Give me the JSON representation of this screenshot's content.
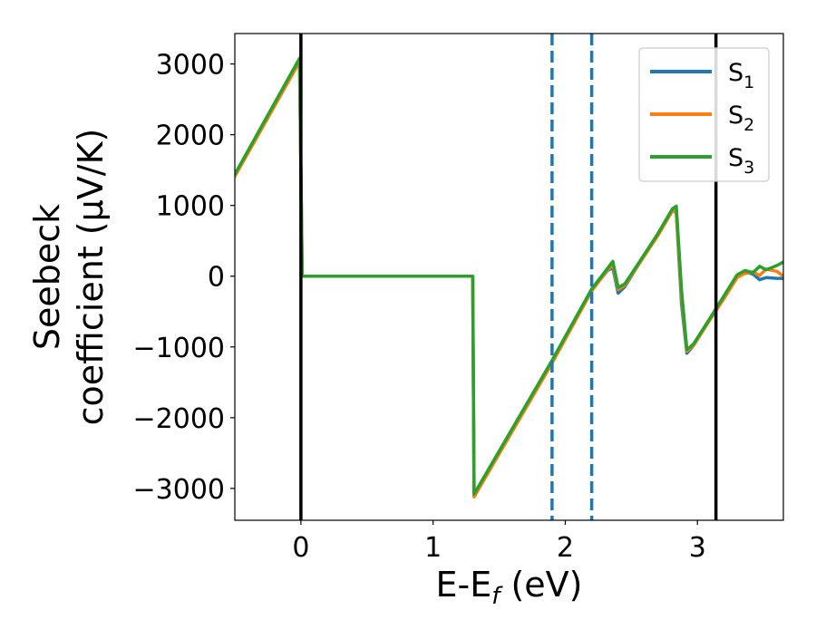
{
  "chart_data": {
    "type": "line",
    "title": "",
    "xlabel_parts": [
      "E-E",
      "f",
      " (eV)"
    ],
    "ylabel_lines": [
      "Seebeck",
      "coefficient  (μV/K)"
    ],
    "xlim": [
      -0.5,
      3.65
    ],
    "ylim": [
      -3450,
      3430
    ],
    "x_ticks": [
      0,
      1,
      2,
      3
    ],
    "x_tick_labels": [
      "0",
      "1",
      "2",
      "3"
    ],
    "y_ticks": [
      3000,
      2000,
      1000,
      0,
      -1000,
      -2000,
      -3000
    ],
    "y_tick_labels": [
      "3000",
      "2000",
      "1000",
      "0",
      "−1000",
      "−2000",
      "−3000"
    ],
    "grid": false,
    "legend_position": "top-right",
    "vertical_lines": [
      {
        "x": 0.0,
        "style": "solid",
        "color": "#000000"
      },
      {
        "x": 1.9,
        "style": "dashed",
        "color": "#1f77b4"
      },
      {
        "x": 2.2,
        "style": "dashed",
        "color": "#1f77b4"
      },
      {
        "x": 3.14,
        "style": "solid",
        "color": "#000000"
      }
    ],
    "series": [
      {
        "name": "S",
        "subscript": "1",
        "color": "#1f77b4",
        "points": [
          [
            -0.5,
            1430
          ],
          [
            -0.01,
            3050
          ],
          [
            0.01,
            0
          ],
          [
            1.3,
            0
          ],
          [
            1.31,
            -3100
          ],
          [
            1.9,
            -1210
          ],
          [
            2.2,
            -200
          ],
          [
            2.32,
            80
          ],
          [
            2.36,
            120
          ],
          [
            2.4,
            -240
          ],
          [
            2.45,
            -150
          ],
          [
            2.55,
            150
          ],
          [
            2.7,
            580
          ],
          [
            2.81,
            930
          ],
          [
            2.84,
            900
          ],
          [
            2.88,
            -400
          ],
          [
            2.92,
            -1090
          ],
          [
            2.97,
            -980
          ],
          [
            3.1,
            -600
          ],
          [
            3.2,
            -300
          ],
          [
            3.3,
            0
          ],
          [
            3.36,
            60
          ],
          [
            3.42,
            30
          ],
          [
            3.47,
            -50
          ],
          [
            3.52,
            -20
          ],
          [
            3.6,
            -30
          ],
          [
            3.65,
            -30
          ]
        ]
      },
      {
        "name": "S",
        "subscript": "2",
        "color": "#ff7f0e",
        "points": [
          [
            -0.5,
            1410
          ],
          [
            -0.01,
            3030
          ],
          [
            0.01,
            0
          ],
          [
            1.3,
            0
          ],
          [
            1.31,
            -3120
          ],
          [
            1.9,
            -1230
          ],
          [
            2.2,
            -210
          ],
          [
            2.32,
            90
          ],
          [
            2.36,
            160
          ],
          [
            2.4,
            -190
          ],
          [
            2.45,
            -130
          ],
          [
            2.55,
            150
          ],
          [
            2.7,
            570
          ],
          [
            2.81,
            920
          ],
          [
            2.84,
            900
          ],
          [
            2.88,
            -300
          ],
          [
            2.92,
            -1060
          ],
          [
            2.97,
            -980
          ],
          [
            3.1,
            -600
          ],
          [
            3.2,
            -320
          ],
          [
            3.3,
            -20
          ],
          [
            3.36,
            40
          ],
          [
            3.42,
            60
          ],
          [
            3.47,
            10
          ],
          [
            3.52,
            100
          ],
          [
            3.6,
            70
          ],
          [
            3.65,
            0
          ]
        ]
      },
      {
        "name": "S",
        "subscript": "3",
        "color": "#2ca02c",
        "points": [
          [
            -0.5,
            1440
          ],
          [
            -0.01,
            3080
          ],
          [
            0.01,
            0
          ],
          [
            1.3,
            0
          ],
          [
            1.31,
            -3080
          ],
          [
            1.9,
            -1190
          ],
          [
            2.2,
            -180
          ],
          [
            2.32,
            110
          ],
          [
            2.36,
            210
          ],
          [
            2.4,
            -160
          ],
          [
            2.45,
            -110
          ],
          [
            2.55,
            170
          ],
          [
            2.7,
            600
          ],
          [
            2.81,
            950
          ],
          [
            2.84,
            990
          ],
          [
            2.88,
            -200
          ],
          [
            2.92,
            -1040
          ],
          [
            2.97,
            -960
          ],
          [
            3.1,
            -580
          ],
          [
            3.2,
            -280
          ],
          [
            3.3,
            20
          ],
          [
            3.36,
            80
          ],
          [
            3.42,
            50
          ],
          [
            3.47,
            140
          ],
          [
            3.52,
            90
          ],
          [
            3.6,
            150
          ],
          [
            3.65,
            200
          ]
        ]
      }
    ]
  }
}
